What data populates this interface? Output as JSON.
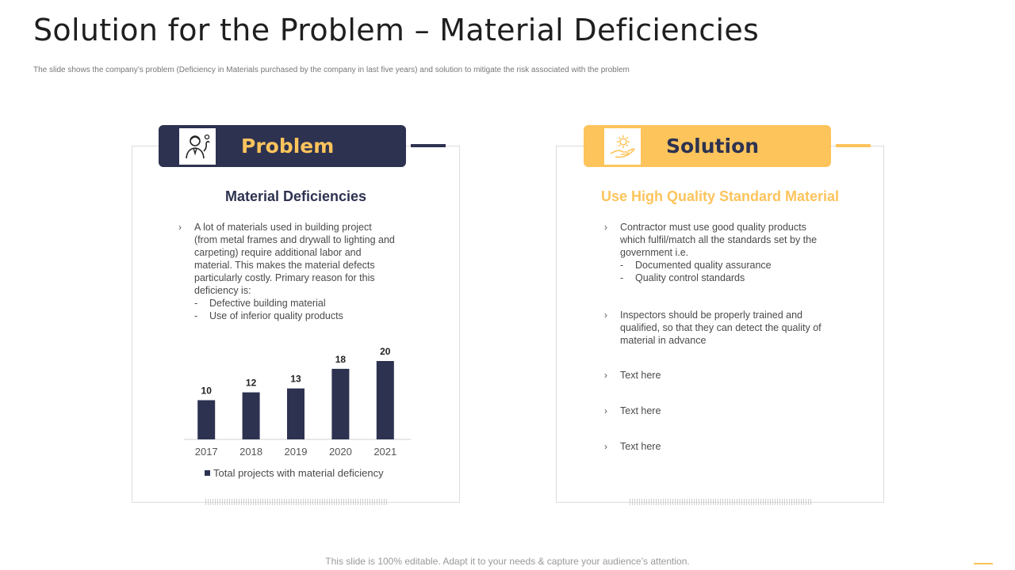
{
  "header": {
    "title": "Solution for the Problem – Material Deficiencies",
    "subtitle": "The slide shows the company’s problem (Deficiency in Materials purchased by the company in last five years) and solution to mitigate  the risk associated with the problem"
  },
  "colors": {
    "navy": "#2d3250",
    "yellow": "#fdc45c"
  },
  "problem": {
    "banner_label": "Problem",
    "icon": "worker-thinking-icon",
    "heading": "Material Deficiencies",
    "paragraph_lines": [
      "A lot of materials used in building project",
      "(from  metal frames and drywall to lighting and",
      "carpeting)  require  additional labor and",
      "material.  This makes the material defects",
      "particularly costly. Primary reason for this",
      "deficiency is:"
    ],
    "sub_items": [
      "Defective  building material",
      "Use of inferior  quality products"
    ]
  },
  "solution": {
    "banner_label": "Solution",
    "icon": "hand-gear-icon",
    "heading": "Use High Quality Standard Material",
    "bullets": [
      {
        "lines": [
          "Contractor must use good quality products",
          "which fulfil/match all the standards set by the",
          "government  i.e."
        ],
        "sub_items": [
          "Documented  quality assurance",
          "Quality control standards"
        ]
      },
      {
        "lines": [
          "Inspectors should be properly trained  and",
          "qualified,  so that they can detect the quality of",
          "material in advance"
        ],
        "sub_items": []
      },
      {
        "lines": [
          "Text here"
        ],
        "sub_items": []
      },
      {
        "lines": [
          "Text here"
        ],
        "sub_items": []
      },
      {
        "lines": [
          "Text here"
        ],
        "sub_items": []
      }
    ]
  },
  "chart_data": {
    "type": "bar",
    "categories": [
      "2017",
      "2018",
      "2019",
      "2020",
      "2021"
    ],
    "series": [
      {
        "name": "Total projects with material deficiency",
        "values": [
          10,
          12,
          13,
          18,
          20
        ]
      }
    ],
    "ylim": [
      0,
      20
    ],
    "grid": false,
    "legend": "bottom"
  },
  "footer": {
    "text": "This slide is 100% editable. Adapt it to your needs & capture your audience’s attention."
  }
}
